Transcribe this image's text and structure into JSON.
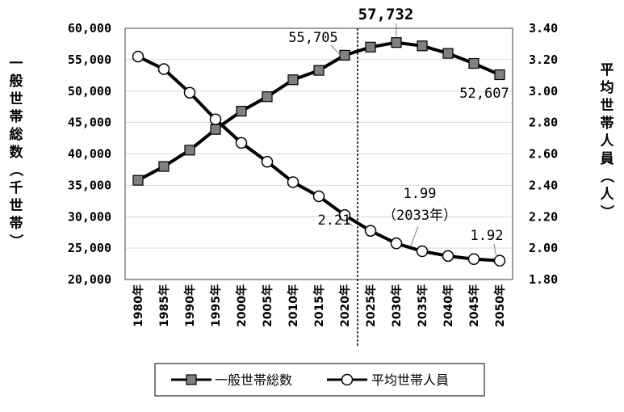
{
  "chart_data": {
    "type": "line",
    "categories": [
      "1980年",
      "1985年",
      "1990年",
      "1995年",
      "2000年",
      "2005年",
      "2010年",
      "2015年",
      "2020年",
      "2025年",
      "2030年",
      "2035年",
      "2040年",
      "2045年",
      "2050年"
    ],
    "series": [
      {
        "name": "一般世帯総数",
        "axis": "left",
        "marker": "square",
        "values": [
          35800,
          38000,
          40600,
          43900,
          46800,
          49100,
          51800,
          53300,
          55705,
          57000,
          57732,
          57200,
          56000,
          54400,
          52607
        ]
      },
      {
        "name": "平均世帯人員",
        "axis": "right",
        "marker": "circle",
        "values": [
          3.22,
          3.14,
          2.99,
          2.82,
          2.67,
          2.55,
          2.42,
          2.33,
          2.21,
          2.11,
          2.03,
          1.98,
          1.95,
          1.93,
          1.92
        ]
      }
    ],
    "ylabel_left": "一般世帯総数（千世帯）",
    "ylabel_right": "平均世帯人員（人）",
    "ylim_left": [
      20000,
      60000
    ],
    "ylim_right": [
      1.8,
      3.4
    ],
    "yticks_left": [
      "20,000",
      "25,000",
      "30,000",
      "35,000",
      "40,000",
      "45,000",
      "50,000",
      "55,000",
      "60,000"
    ],
    "yticks_right": [
      "1.80",
      "2.00",
      "2.20",
      "2.40",
      "2.60",
      "2.80",
      "3.00",
      "3.20",
      "3.40"
    ],
    "grid": "horizontal",
    "divider_after_category": "2020年",
    "annotations": {
      "peak": "57,732",
      "val_2020": "55,705",
      "val_2050": "52,607",
      "avg_2020": "2.21",
      "avg_2033": "1.99",
      "avg_2033_note": "（2033年）",
      "avg_2050": "1.92"
    },
    "legend_position": "bottom",
    "colors": {
      "line": "#000000",
      "square_fill": "#808080",
      "circle_fill": "#ffffff",
      "grid": "#d9d9d9",
      "frame": "#808080"
    }
  }
}
